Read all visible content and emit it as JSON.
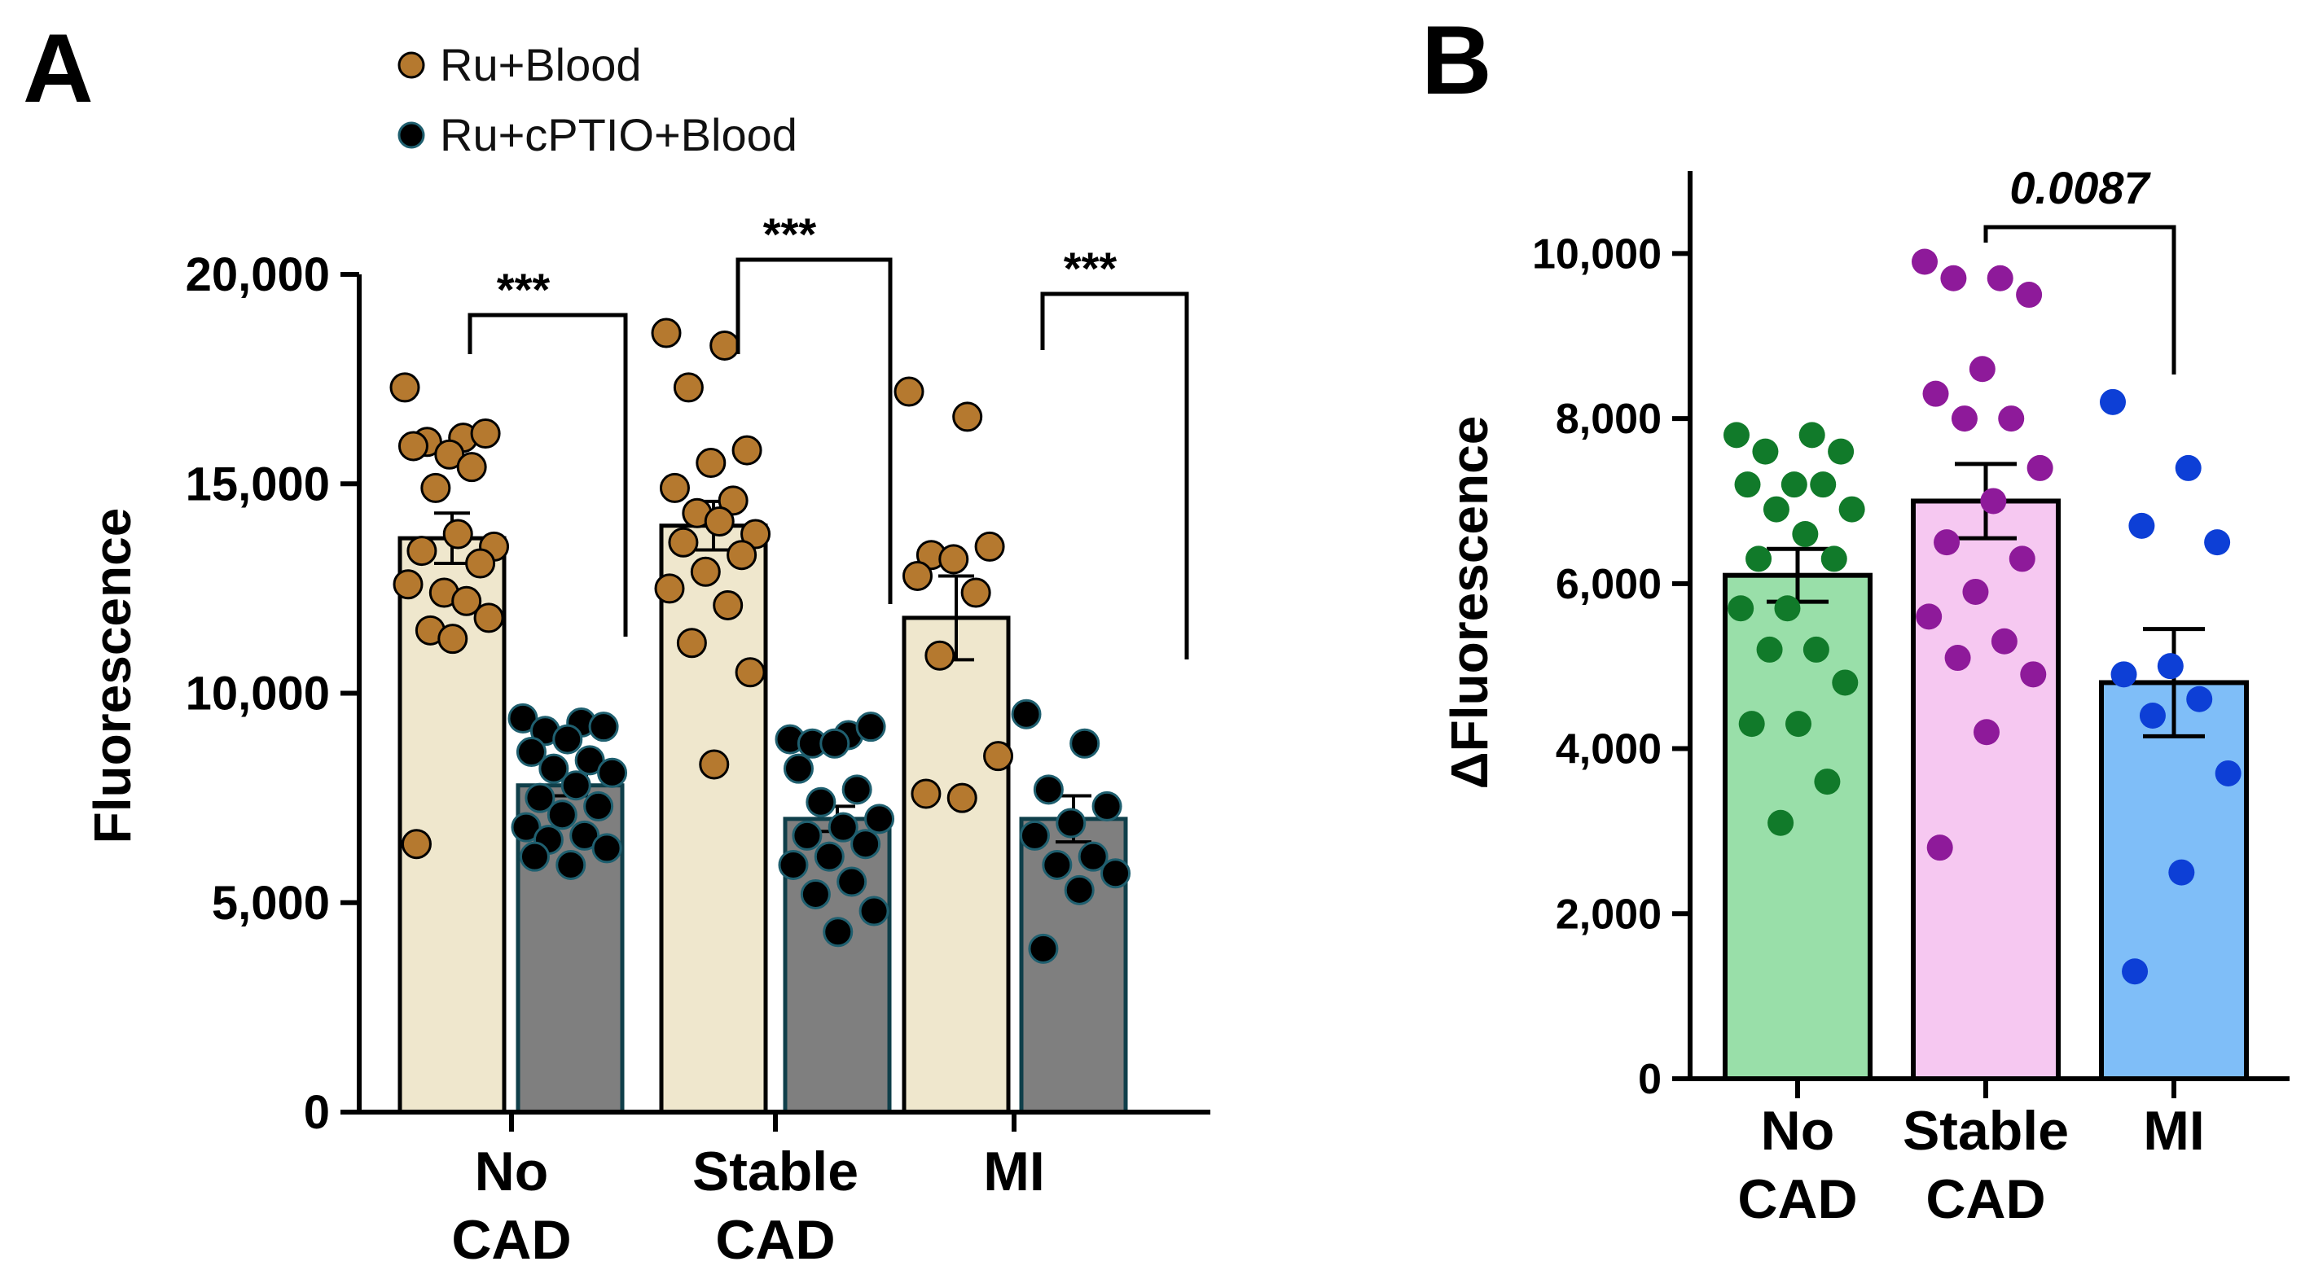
{
  "chart_data": [
    {
      "panel": "A",
      "type": "bar",
      "title": "",
      "xlabel": "",
      "ylabel": "Fluorescence",
      "ylim": [
        0,
        20000
      ],
      "yticks": [
        0,
        5000,
        10000,
        15000,
        20000
      ],
      "ytick_labels": [
        "0",
        "5,000",
        "10,000",
        "15,000",
        "20,000"
      ],
      "categories": [
        "No CAD",
        "Stable CAD",
        "MI"
      ],
      "category_lines": [
        [
          "No",
          "CAD"
        ],
        [
          "Stable",
          "CAD"
        ],
        [
          "MI"
        ]
      ],
      "legend": {
        "placement": "top-left",
        "entries": [
          "Ru+Blood",
          "Ru+cPTIO+Blood"
        ]
      },
      "series": [
        {
          "name": "Ru+Blood",
          "bar_color": "#efe7cd",
          "point_color": "#b5792f",
          "values": [
            13700,
            14000,
            11800
          ],
          "sem": [
            600,
            580,
            1000
          ],
          "points": [
            [
              17300,
              16100,
              16000,
              16200,
              15700,
              15900,
              15400,
              14900,
              13500,
              13800,
              13400,
              13100,
              12400,
              12600,
              12200,
              11500,
              11800,
              11300,
              6400
            ],
            [
              18600,
              18300,
              17300,
              15800,
              15500,
              14900,
              14600,
              14300,
              13800,
              14100,
              13600,
              13300,
              12900,
              12500,
              12100,
              11200,
              10500,
              8300
            ],
            [
              17200,
              16600,
              13300,
              13500,
              13200,
              12800,
              12400,
              10900,
              8500,
              7500,
              7600
            ]
          ]
        },
        {
          "name": "Ru+cPTIO+Blood",
          "bar_color": "#7f7f7f",
          "point_color": "#000000",
          "values": [
            7800,
            7000,
            7000
          ],
          "sem": [
            250,
            300,
            550
          ],
          "points": [
            [
              9400,
              9300,
              9100,
              9200,
              8900,
              8600,
              8400,
              8200,
              8100,
              7800,
              7500,
              7300,
              7100,
              6800,
              6600,
              6500,
              6300,
              5900,
              6100
            ],
            [
              8900,
              9000,
              8800,
              9200,
              8800,
              8200,
              7700,
              7400,
              7000,
              6800,
              6600,
              6400,
              6100,
              5900,
              5500,
              5200,
              4800,
              4300
            ],
            [
              9500,
              8800,
              7700,
              7300,
              6900,
              6600,
              6100,
              5900,
              5700,
              5300,
              3900
            ]
          ]
        }
      ],
      "annotations": [
        {
          "text": "***",
          "group": "No CAD"
        },
        {
          "text": "***",
          "group": "Stable CAD"
        },
        {
          "text": "***",
          "group": "MI"
        }
      ]
    },
    {
      "panel": "B",
      "type": "bar",
      "title": "",
      "xlabel": "",
      "ylabel": "ΔFluorescence",
      "ylim": [
        0,
        11000
      ],
      "yticks": [
        0,
        2000,
        4000,
        6000,
        8000,
        10000
      ],
      "ytick_labels": [
        "0",
        "2,000",
        "4,000",
        "6,000",
        "8,000",
        "10,000"
      ],
      "categories": [
        "No CAD",
        "Stable CAD",
        "MI"
      ],
      "category_lines": [
        [
          "No",
          "CAD"
        ],
        [
          "Stable",
          "CAD"
        ],
        [
          "MI"
        ]
      ],
      "series": [
        {
          "name": "ΔFluorescence",
          "bar_colors": [
            "#99dfa9",
            "#f6c8f1",
            "#7fbef8"
          ],
          "point_colors": [
            "#117a2a",
            "#8e1a9a",
            "#0d3fd6"
          ],
          "values": [
            6100,
            7000,
            4800
          ],
          "sem": [
            320,
            450,
            650
          ],
          "points": [
            [
              7800,
              7800,
              7600,
              7600,
              7200,
              7200,
              7200,
              6900,
              6900,
              6600,
              6300,
              6300,
              5700,
              5700,
              5200,
              5200,
              4800,
              4300,
              4300,
              3600,
              3100
            ],
            [
              9900,
              9700,
              9700,
              9500,
              8600,
              8300,
              8000,
              8000,
              7400,
              7000,
              6500,
              6300,
              5900,
              5600,
              5300,
              5100,
              4900,
              4200,
              2800
            ],
            [
              8200,
              7400,
              6700,
              6500,
              5000,
              4900,
              4600,
              4400,
              3700,
              2500,
              1300
            ]
          ]
        }
      ],
      "annotations": [
        {
          "text": "0.0087",
          "from": "Stable CAD",
          "to": "MI"
        }
      ]
    }
  ],
  "panels": [
    {
      "letter": "A"
    },
    {
      "letter": "B"
    }
  ]
}
